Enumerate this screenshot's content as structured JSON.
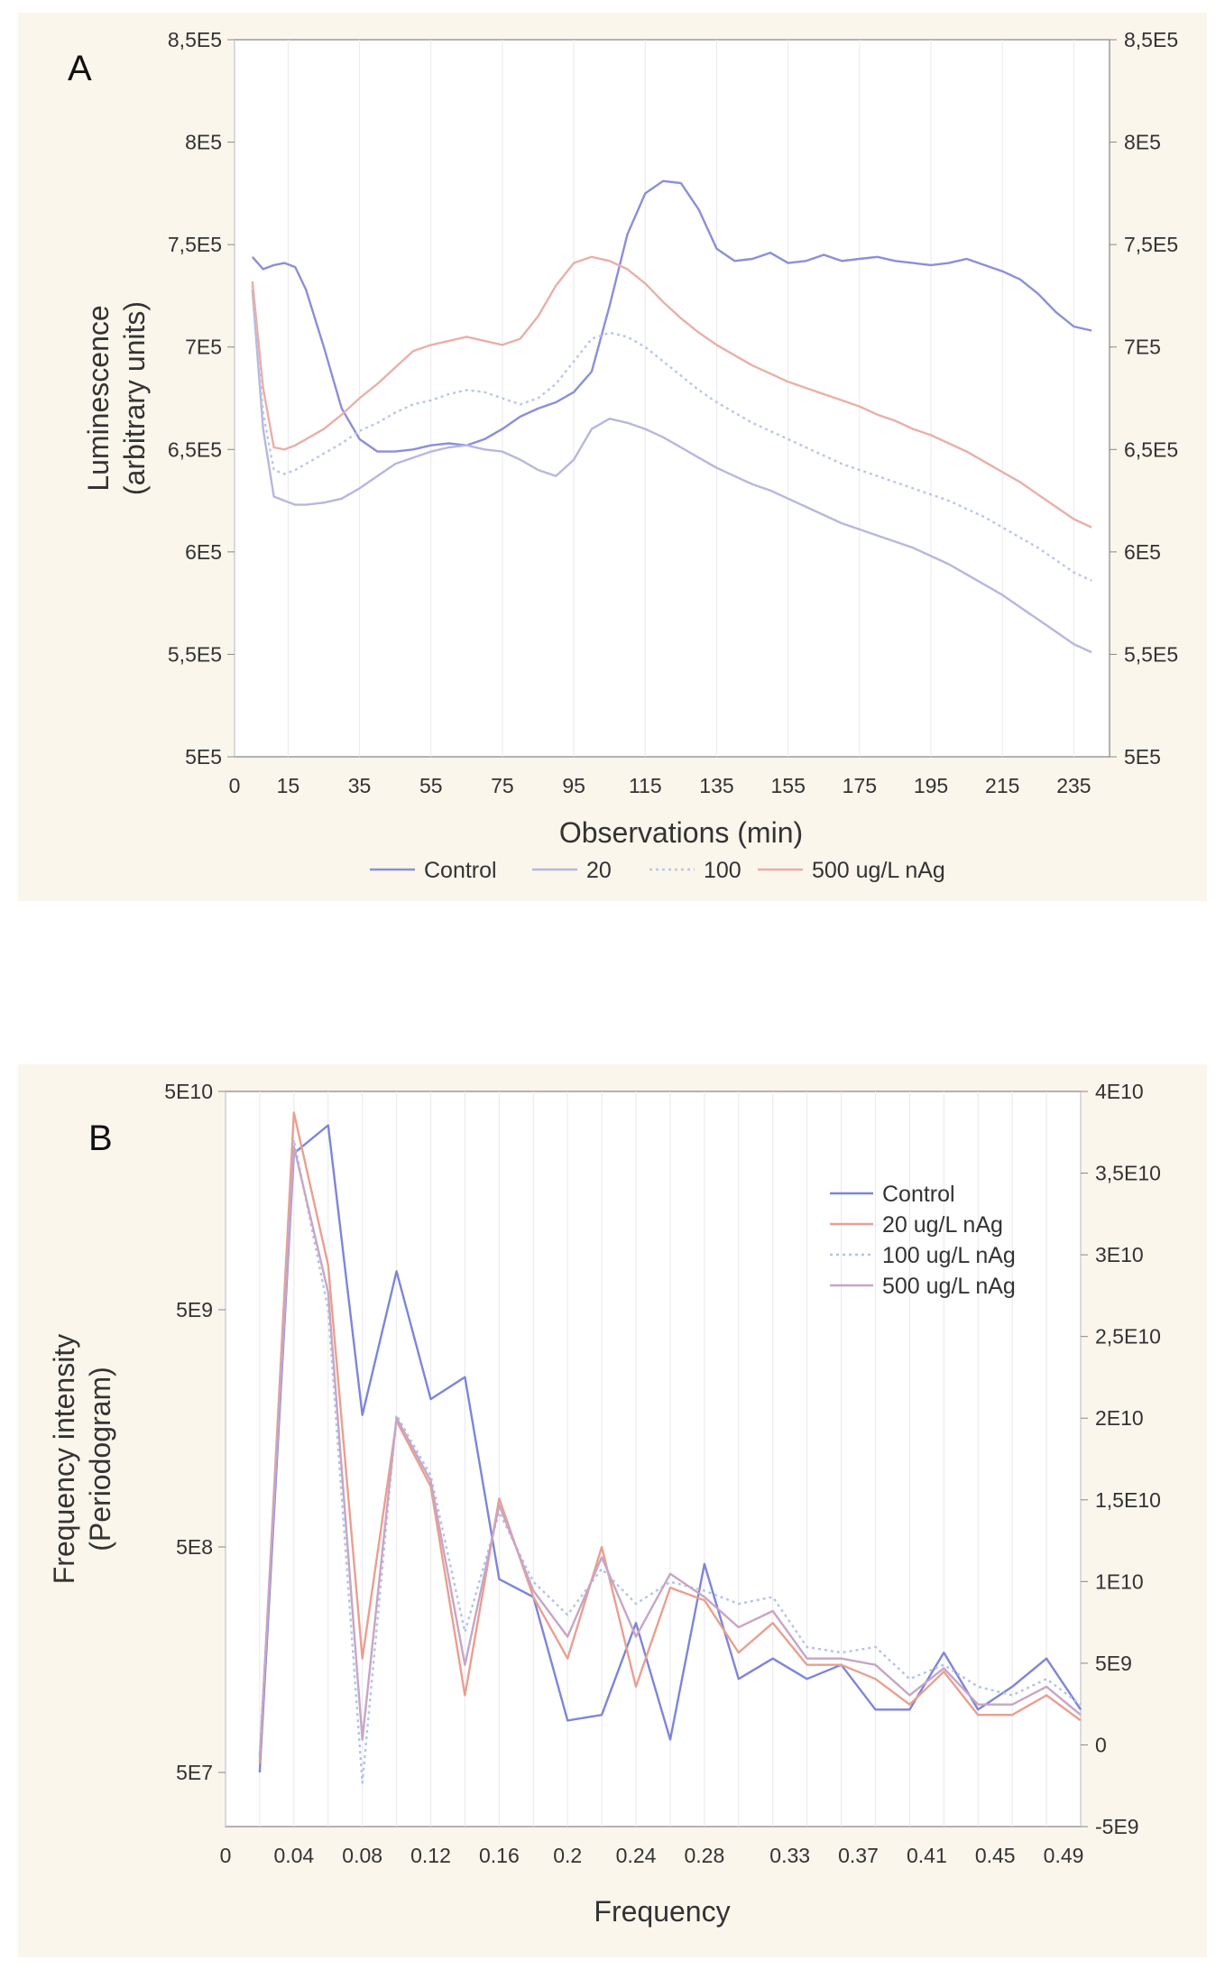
{
  "chart_data": [
    {
      "id": "A",
      "type": "line",
      "panel_label": "A",
      "title": "",
      "xlabel": "Observations (min)",
      "ylabel": [
        "Luminescence",
        "(arbitrary units)"
      ],
      "xlim": [
        0,
        245
      ],
      "ylim": [
        500000,
        850000
      ],
      "x_ticks": [
        0,
        15,
        35,
        55,
        75,
        95,
        115,
        135,
        155,
        175,
        195,
        215,
        235
      ],
      "x_tick_labels": [
        "0",
        "15",
        "35",
        "55",
        "75",
        "95",
        "115",
        "135",
        "155",
        "175",
        "195",
        "215",
        "235"
      ],
      "y_ticks": [
        500000,
        550000,
        600000,
        650000,
        700000,
        750000,
        800000,
        850000
      ],
      "y_tick_labels": [
        "5E5",
        "5,5E5",
        "6E5",
        "6,5E5",
        "7E5",
        "7,5E5",
        "8E5",
        "8,5E5"
      ],
      "legend_position": "bottom",
      "series": [
        {
          "name": "Control",
          "color": "#8b8fd8",
          "dash": "",
          "x": [
            5,
            8,
            11,
            14,
            17,
            20,
            25,
            30,
            35,
            40,
            45,
            50,
            55,
            60,
            65,
            70,
            75,
            80,
            85,
            90,
            95,
            100,
            105,
            110,
            115,
            120,
            125,
            130,
            135,
            140,
            145,
            150,
            155,
            160,
            165,
            170,
            175,
            180,
            185,
            190,
            195,
            200,
            205,
            210,
            215,
            220,
            225,
            230,
            235,
            240
          ],
          "y": [
            744000,
            738000,
            740000,
            741000,
            739000,
            728000,
            700000,
            670000,
            655000,
            649000,
            649000,
            650000,
            652000,
            653000,
            652000,
            655000,
            660000,
            666000,
            670000,
            673000,
            678000,
            688000,
            720000,
            755000,
            775000,
            781000,
            780000,
            767000,
            748000,
            742000,
            743000,
            746000,
            741000,
            742000,
            745000,
            742000,
            743000,
            744000,
            742000,
            741000,
            740000,
            741000,
            743000,
            740000,
            737000,
            733000,
            726000,
            717000,
            710000,
            708000
          ]
        },
        {
          "name": "20",
          "color": "#b7b7df",
          "dash": "",
          "x": [
            5,
            8,
            11,
            14,
            17,
            20,
            25,
            30,
            35,
            40,
            45,
            50,
            55,
            60,
            65,
            70,
            75,
            80,
            85,
            90,
            95,
            100,
            105,
            110,
            115,
            120,
            125,
            130,
            135,
            140,
            145,
            150,
            155,
            160,
            165,
            170,
            175,
            180,
            185,
            190,
            195,
            200,
            205,
            210,
            215,
            220,
            225,
            230,
            235,
            240
          ],
          "y": [
            728000,
            660000,
            627000,
            625000,
            623000,
            623000,
            624000,
            626000,
            631000,
            637000,
            643000,
            646000,
            649000,
            651000,
            652000,
            650000,
            649000,
            645000,
            640000,
            637000,
            645000,
            660000,
            665000,
            663000,
            660000,
            656000,
            651000,
            646000,
            641000,
            637000,
            633000,
            630000,
            626000,
            622000,
            618000,
            614000,
            611000,
            608000,
            605000,
            602000,
            598000,
            594000,
            589000,
            584000,
            579000,
            573000,
            567000,
            561000,
            555000,
            551000
          ]
        },
        {
          "name": "100",
          "color": "#b9c6e8",
          "dash": "3 4",
          "x": [
            5,
            8,
            11,
            14,
            17,
            20,
            25,
            30,
            35,
            40,
            45,
            50,
            55,
            60,
            65,
            70,
            75,
            80,
            85,
            90,
            95,
            100,
            105,
            110,
            115,
            120,
            125,
            130,
            135,
            140,
            145,
            150,
            155,
            160,
            165,
            170,
            175,
            180,
            185,
            190,
            195,
            200,
            205,
            210,
            215,
            220,
            225,
            230,
            235,
            240
          ],
          "y": [
            730000,
            668000,
            640000,
            638000,
            640000,
            643000,
            648000,
            653000,
            659000,
            663000,
            668000,
            672000,
            674000,
            677000,
            679000,
            678000,
            675000,
            672000,
            675000,
            682000,
            693000,
            704000,
            707000,
            705000,
            700000,
            693000,
            686000,
            679000,
            673000,
            668000,
            663000,
            659000,
            655000,
            651000,
            647000,
            643000,
            640000,
            637000,
            634000,
            631000,
            628000,
            625000,
            621000,
            617000,
            612000,
            607000,
            602000,
            596000,
            590000,
            586000
          ]
        },
        {
          "name": "500 ug/L nAg",
          "color": "#e8b0a8",
          "dash": "",
          "x": [
            5,
            8,
            11,
            14,
            17,
            20,
            25,
            30,
            35,
            40,
            45,
            50,
            55,
            60,
            65,
            70,
            75,
            80,
            85,
            90,
            95,
            100,
            105,
            110,
            115,
            120,
            125,
            130,
            135,
            140,
            145,
            150,
            155,
            160,
            165,
            170,
            175,
            180,
            185,
            190,
            195,
            200,
            205,
            210,
            215,
            220,
            225,
            230,
            235,
            240
          ],
          "y": [
            732000,
            680000,
            651000,
            650000,
            652000,
            655000,
            660000,
            667000,
            675000,
            682000,
            690000,
            698000,
            701000,
            703000,
            705000,
            703000,
            701000,
            704000,
            715000,
            730000,
            741000,
            744000,
            742000,
            738000,
            731000,
            722000,
            714000,
            707000,
            701000,
            696000,
            691000,
            687000,
            683000,
            680000,
            677000,
            674000,
            671000,
            667000,
            664000,
            660000,
            657000,
            653000,
            649000,
            644000,
            639000,
            634000,
            628000,
            622000,
            616000,
            612000
          ]
        }
      ]
    },
    {
      "id": "B",
      "type": "line",
      "panel_label": "B",
      "title": "",
      "xlabel": "Frequency",
      "ylabel": [
        "Frequency intensity",
        "(Periodogram)"
      ],
      "xlim": [
        0,
        0.5
      ],
      "y_left_scale": "log",
      "y_left_ticks": [
        50000000,
        500000000,
        5000000000,
        50000000000
      ],
      "y_left_tick_labels": [
        "5E7",
        "5E8",
        "5E9",
        "5E10"
      ],
      "y_right_range": [
        -5000000000,
        40000000000
      ],
      "y_right_ticks": [
        -5000000000,
        0,
        5000000000,
        10000000000,
        15000000000,
        20000000000,
        25000000000,
        30000000000,
        35000000000,
        40000000000
      ],
      "y_right_tick_labels": [
        "-5E9",
        "0",
        "5E9",
        "1E10",
        "1,5E10",
        "2E10",
        "2,5E10",
        "3E10",
        "3,5E10",
        "4E10"
      ],
      "x_ticks": [
        0,
        0.04,
        0.08,
        0.12,
        0.16,
        0.2,
        0.24,
        0.28,
        0.33,
        0.37,
        0.41,
        0.45,
        0.49
      ],
      "x_tick_labels": [
        "0",
        "0.04",
        "0.08",
        "0.12",
        "0.16",
        "0.2",
        "0.24",
        "0.28",
        "0.33",
        "0.37",
        "0.41",
        "0.45",
        "0.49"
      ],
      "legend_position": "top-right",
      "series": [
        {
          "name": "Control",
          "color": "#7f85d6",
          "dash": "",
          "x": [
            0.02,
            0.04,
            0.06,
            0.08,
            0.1,
            0.12,
            0.14,
            0.16,
            0.18,
            0.2,
            0.22,
            0.24,
            0.26,
            0.28,
            0.3,
            0.32,
            0.34,
            0.36,
            0.38,
            0.4,
            0.42,
            0.44,
            0.46,
            0.48,
            0.5
          ],
          "y": [
            50000000,
            26000000000,
            35000000000,
            1800000000,
            7500000000,
            2100000000,
            2600000000,
            360000000,
            300000000,
            85000000,
            90000000,
            230000000,
            70000000,
            420000000,
            130000000,
            160000000,
            130000000,
            150000000,
            95000000,
            95000000,
            170000000,
            95000000,
            120000000,
            160000000,
            95000000
          ]
        },
        {
          "name": "20 ug/L nAg",
          "color": "#e8a090",
          "dash": "",
          "x": [
            0.02,
            0.04,
            0.06,
            0.08,
            0.1,
            0.12,
            0.14,
            0.16,
            0.18,
            0.2,
            0.22,
            0.24,
            0.26,
            0.28,
            0.3,
            0.32,
            0.34,
            0.36,
            0.38,
            0.4,
            0.42,
            0.44,
            0.46,
            0.48,
            0.5
          ],
          "y": [
            55000000,
            40000000000,
            8000000000,
            160000000,
            1700000000,
            900000000,
            110000000,
            800000000,
            300000000,
            160000000,
            500000000,
            120000000,
            330000000,
            290000000,
            170000000,
            230000000,
            150000000,
            150000000,
            130000000,
            100000000,
            140000000,
            90000000,
            90000000,
            110000000,
            85000000
          ]
        },
        {
          "name": "100 ug/L nAg",
          "color": "#b3c3e6",
          "dash": "3 4",
          "x": [
            0.02,
            0.04,
            0.06,
            0.08,
            0.1,
            0.12,
            0.14,
            0.16,
            0.18,
            0.2,
            0.22,
            0.24,
            0.26,
            0.28,
            0.3,
            0.32,
            0.34,
            0.36,
            0.38,
            0.4,
            0.42,
            0.44,
            0.46,
            0.48,
            0.5
          ],
          "y": [
            60000000,
            30000000000,
            5000000000,
            45000000,
            1800000000,
            1000000000,
            210000000,
            700000000,
            350000000,
            250000000,
            400000000,
            280000000,
            350000000,
            320000000,
            280000000,
            300000000,
            180000000,
            170000000,
            180000000,
            130000000,
            150000000,
            120000000,
            110000000,
            130000000,
            100000000
          ]
        },
        {
          "name": "500 ug/L nAg",
          "color": "#c7a6c4",
          "dash": "",
          "x": [
            0.02,
            0.04,
            0.06,
            0.08,
            0.1,
            0.12,
            0.14,
            0.16,
            0.18,
            0.2,
            0.22,
            0.24,
            0.26,
            0.28,
            0.3,
            0.32,
            0.34,
            0.36,
            0.38,
            0.4,
            0.42,
            0.44,
            0.46,
            0.48,
            0.5
          ],
          "y": [
            58000000,
            28000000000,
            6000000000,
            70000000,
            1750000000,
            950000000,
            150000000,
            750000000,
            320000000,
            200000000,
            450000000,
            200000000,
            380000000,
            300000000,
            220000000,
            260000000,
            160000000,
            160000000,
            150000000,
            110000000,
            145000000,
            100000000,
            100000000,
            120000000,
            90000000
          ]
        }
      ]
    }
  ]
}
